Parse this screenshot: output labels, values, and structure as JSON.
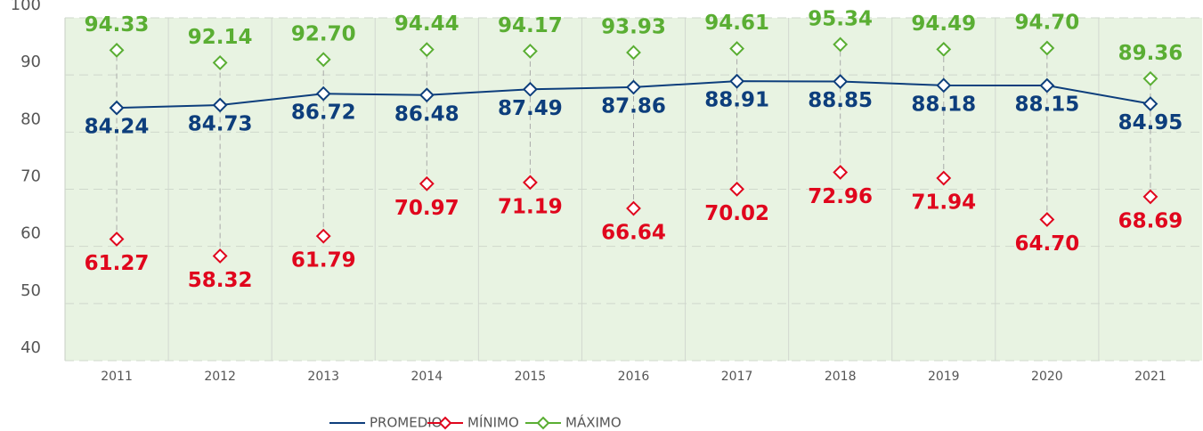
{
  "chart_data": {
    "type": "line",
    "categories": [
      "2011",
      "2012",
      "2013",
      "2014",
      "2015",
      "2016",
      "2017",
      "2018",
      "2019",
      "2020",
      "2021"
    ],
    "series": [
      {
        "name": "PROMEDIO",
        "color": "#0d3e7c",
        "values": [
          84.24,
          84.73,
          86.72,
          86.48,
          87.49,
          87.86,
          88.91,
          88.85,
          88.18,
          88.15,
          84.95
        ],
        "value_labels": [
          "84.24",
          "84.73",
          "86.72",
          "86.48",
          "87.49",
          "87.86",
          "88.91",
          "88.85",
          "88.18",
          "88.15",
          "84.95"
        ]
      },
      {
        "name": "MÍNIMO",
        "color": "#e0061d",
        "values": [
          61.27,
          58.32,
          61.79,
          70.97,
          71.19,
          66.64,
          70.02,
          72.96,
          71.94,
          64.7,
          68.69
        ],
        "value_labels": [
          "61.27",
          "58.32",
          "61.79",
          "70.97",
          "71.19",
          "66.64",
          "70.02",
          "72.96",
          "71.94",
          "64.70",
          "68.69"
        ]
      },
      {
        "name": "MÁXIMO",
        "color": "#5aae33",
        "values": [
          94.33,
          92.14,
          92.7,
          94.44,
          94.17,
          93.93,
          94.61,
          95.34,
          94.49,
          94.7,
          89.36
        ],
        "value_labels": [
          "94.33",
          "92.14",
          "92.70",
          "94.44",
          "94.17",
          "93.93",
          "94.61",
          "95.34",
          "94.49",
          "94.70",
          "89.36"
        ]
      }
    ],
    "ylim": [
      40,
      100
    ],
    "yticks": [
      40,
      50,
      60,
      70,
      80,
      90,
      100
    ],
    "grid": true
  }
}
